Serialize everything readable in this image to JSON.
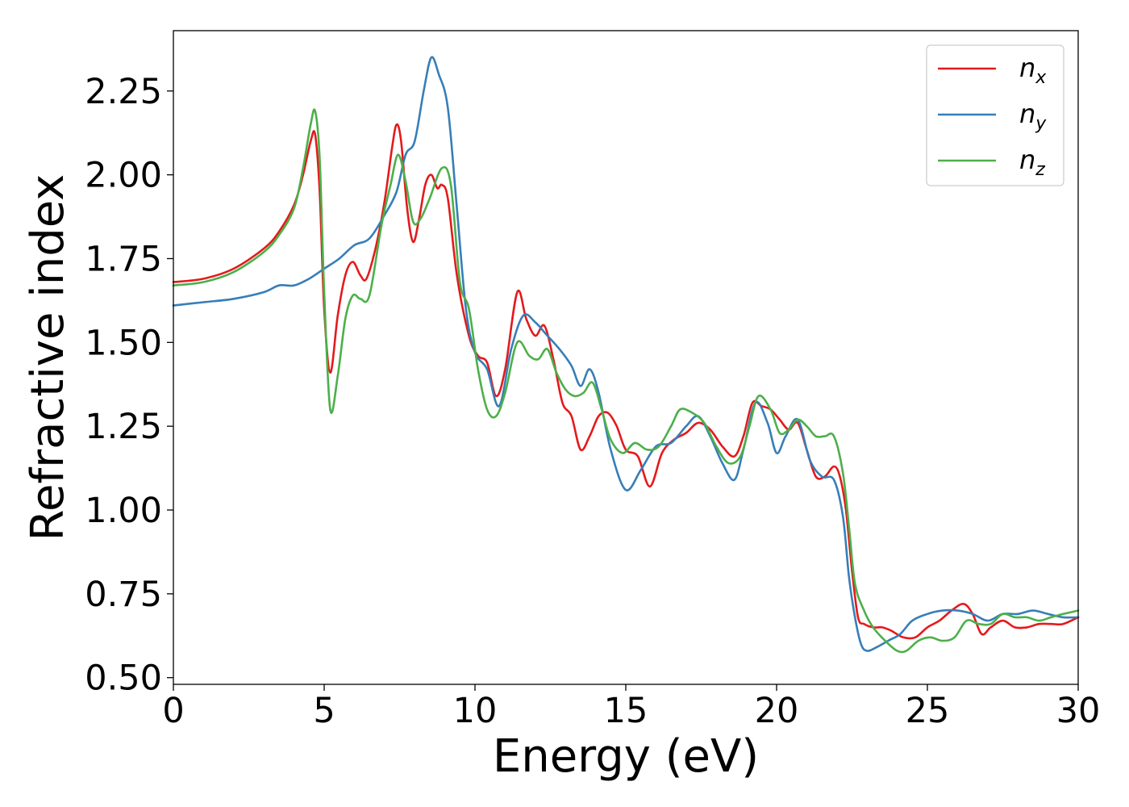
{
  "chart_data": {
    "type": "line",
    "xlabel": "Energy (eV)",
    "ylabel": "Refractive index",
    "xlim": [
      0,
      30
    ],
    "ylim": [
      0.48,
      2.43
    ],
    "xticks": [
      0,
      5,
      10,
      15,
      20,
      25,
      30
    ],
    "xtick_labels": [
      "0",
      "5",
      "10",
      "15",
      "20",
      "25",
      "30"
    ],
    "yticks": [
      0.5,
      0.75,
      1.0,
      1.25,
      1.5,
      1.75,
      2.0,
      2.25
    ],
    "ytick_labels": [
      "0.50",
      "0.75",
      "1.00",
      "1.25",
      "1.50",
      "1.75",
      "2.00",
      "2.25"
    ],
    "grid": false,
    "legend_position": "top-right",
    "series": [
      {
        "name": "n_x",
        "base": "n",
        "sub": "x",
        "color": "#e41a1c",
        "x": [
          0,
          1,
          2,
          3,
          3.5,
          4,
          4.3,
          4.55,
          4.7,
          4.85,
          5.0,
          5.2,
          5.45,
          5.7,
          5.95,
          6.2,
          6.4,
          6.7,
          7.0,
          7.25,
          7.4,
          7.55,
          7.75,
          7.95,
          8.15,
          8.35,
          8.55,
          8.75,
          8.9,
          9.1,
          9.4,
          9.8,
          10.1,
          10.4,
          10.7,
          11.0,
          11.4,
          11.7,
          12.0,
          12.3,
          12.6,
          12.9,
          13.2,
          13.5,
          13.8,
          14.1,
          14.4,
          14.7,
          15.0,
          15.4,
          15.8,
          16.2,
          16.6,
          17.0,
          17.4,
          17.8,
          18.2,
          18.6,
          18.9,
          19.2,
          19.5,
          19.8,
          20.1,
          20.4,
          20.7,
          21.0,
          21.3,
          21.6,
          21.9,
          22.1,
          22.3,
          22.5,
          22.7,
          22.9,
          23.2,
          23.5,
          23.8,
          24.2,
          24.6,
          25.0,
          25.4,
          25.8,
          26.2,
          26.5,
          26.8,
          27.1,
          27.5,
          27.9,
          28.3,
          28.7,
          29.1,
          29.5,
          30.0
        ],
        "y": [
          1.68,
          1.69,
          1.72,
          1.78,
          1.83,
          1.91,
          2.0,
          2.1,
          2.12,
          1.95,
          1.6,
          1.41,
          1.58,
          1.7,
          1.74,
          1.7,
          1.69,
          1.78,
          1.92,
          2.08,
          2.15,
          2.1,
          1.9,
          1.8,
          1.87,
          1.97,
          2.0,
          1.96,
          1.97,
          1.93,
          1.7,
          1.52,
          1.46,
          1.44,
          1.34,
          1.42,
          1.65,
          1.57,
          1.52,
          1.55,
          1.45,
          1.32,
          1.28,
          1.18,
          1.22,
          1.28,
          1.29,
          1.25,
          1.18,
          1.16,
          1.07,
          1.17,
          1.21,
          1.23,
          1.26,
          1.24,
          1.19,
          1.16,
          1.22,
          1.32,
          1.31,
          1.3,
          1.27,
          1.24,
          1.26,
          1.18,
          1.1,
          1.1,
          1.13,
          1.1,
          1.0,
          0.82,
          0.68,
          0.66,
          0.65,
          0.65,
          0.64,
          0.62,
          0.62,
          0.65,
          0.67,
          0.7,
          0.72,
          0.69,
          0.63,
          0.65,
          0.67,
          0.65,
          0.65,
          0.66,
          0.66,
          0.66,
          0.68
        ]
      },
      {
        "name": "n_y",
        "base": "n",
        "sub": "y",
        "color": "#377eb8",
        "x": [
          0,
          1,
          2,
          3,
          3.5,
          4,
          4.5,
          5.0,
          5.5,
          6.0,
          6.5,
          7.0,
          7.4,
          7.7,
          8.0,
          8.3,
          8.55,
          8.8,
          9.1,
          9.4,
          9.7,
          10.0,
          10.4,
          10.8,
          11.2,
          11.6,
          12.0,
          12.4,
          12.8,
          13.2,
          13.5,
          13.8,
          14.1,
          14.5,
          15.0,
          15.5,
          16.0,
          16.5,
          17.0,
          17.4,
          17.8,
          18.2,
          18.6,
          18.9,
          19.3,
          19.7,
          20.0,
          20.3,
          20.7,
          21.1,
          21.5,
          21.9,
          22.2,
          22.4,
          22.6,
          22.8,
          23.0,
          23.3,
          23.7,
          24.1,
          24.5,
          25.0,
          25.5,
          26.0,
          26.5,
          27.0,
          27.5,
          28.0,
          28.5,
          29.0,
          29.5,
          30.0
        ],
        "y": [
          1.61,
          1.62,
          1.63,
          1.65,
          1.67,
          1.67,
          1.69,
          1.72,
          1.75,
          1.79,
          1.81,
          1.88,
          1.95,
          2.06,
          2.1,
          2.25,
          2.35,
          2.3,
          2.2,
          1.9,
          1.6,
          1.47,
          1.42,
          1.31,
          1.48,
          1.58,
          1.56,
          1.52,
          1.48,
          1.43,
          1.37,
          1.42,
          1.35,
          1.18,
          1.06,
          1.12,
          1.19,
          1.2,
          1.25,
          1.28,
          1.22,
          1.14,
          1.09,
          1.18,
          1.32,
          1.26,
          1.17,
          1.22,
          1.27,
          1.15,
          1.1,
          1.09,
          0.98,
          0.8,
          0.68,
          0.6,
          0.58,
          0.59,
          0.61,
          0.63,
          0.67,
          0.69,
          0.7,
          0.7,
          0.69,
          0.67,
          0.69,
          0.69,
          0.7,
          0.69,
          0.68,
          0.68
        ]
      },
      {
        "name": "n_z",
        "base": "n",
        "sub": "z",
        "color": "#4daf4a",
        "x": [
          0,
          1,
          2,
          3,
          3.5,
          4,
          4.3,
          4.55,
          4.7,
          4.85,
          5.0,
          5.2,
          5.45,
          5.7,
          5.95,
          6.2,
          6.5,
          6.9,
          7.2,
          7.45,
          7.7,
          7.95,
          8.2,
          8.5,
          8.9,
          9.2,
          9.5,
          9.8,
          10.1,
          10.4,
          10.7,
          11.0,
          11.4,
          11.8,
          12.1,
          12.4,
          12.7,
          13.0,
          13.3,
          13.6,
          13.9,
          14.2,
          14.5,
          14.9,
          15.3,
          15.7,
          16.1,
          16.5,
          16.8,
          17.2,
          17.6,
          18.0,
          18.4,
          18.8,
          19.1,
          19.4,
          19.8,
          20.1,
          20.4,
          20.7,
          21.0,
          21.3,
          21.6,
          21.9,
          22.2,
          22.4,
          22.6,
          22.9,
          23.2,
          23.6,
          24.0,
          24.3,
          24.7,
          25.1,
          25.5,
          25.9,
          26.3,
          26.7,
          27.1,
          27.5,
          27.9,
          28.3,
          28.7,
          29.1,
          29.5,
          30.0
        ],
        "y": [
          1.67,
          1.68,
          1.71,
          1.77,
          1.82,
          1.9,
          2.02,
          2.15,
          2.19,
          2.05,
          1.65,
          1.3,
          1.4,
          1.57,
          1.64,
          1.63,
          1.64,
          1.85,
          1.97,
          2.06,
          1.98,
          1.86,
          1.87,
          1.93,
          2.02,
          1.97,
          1.68,
          1.6,
          1.42,
          1.3,
          1.28,
          1.35,
          1.5,
          1.46,
          1.45,
          1.48,
          1.41,
          1.36,
          1.34,
          1.35,
          1.38,
          1.3,
          1.21,
          1.17,
          1.2,
          1.18,
          1.19,
          1.25,
          1.3,
          1.29,
          1.26,
          1.19,
          1.14,
          1.16,
          1.25,
          1.34,
          1.3,
          1.23,
          1.24,
          1.27,
          1.25,
          1.22,
          1.22,
          1.22,
          1.11,
          0.95,
          0.78,
          0.7,
          0.65,
          0.61,
          0.58,
          0.58,
          0.61,
          0.62,
          0.61,
          0.62,
          0.67,
          0.66,
          0.66,
          0.69,
          0.68,
          0.68,
          0.67,
          0.68,
          0.69,
          0.7
        ]
      }
    ]
  }
}
